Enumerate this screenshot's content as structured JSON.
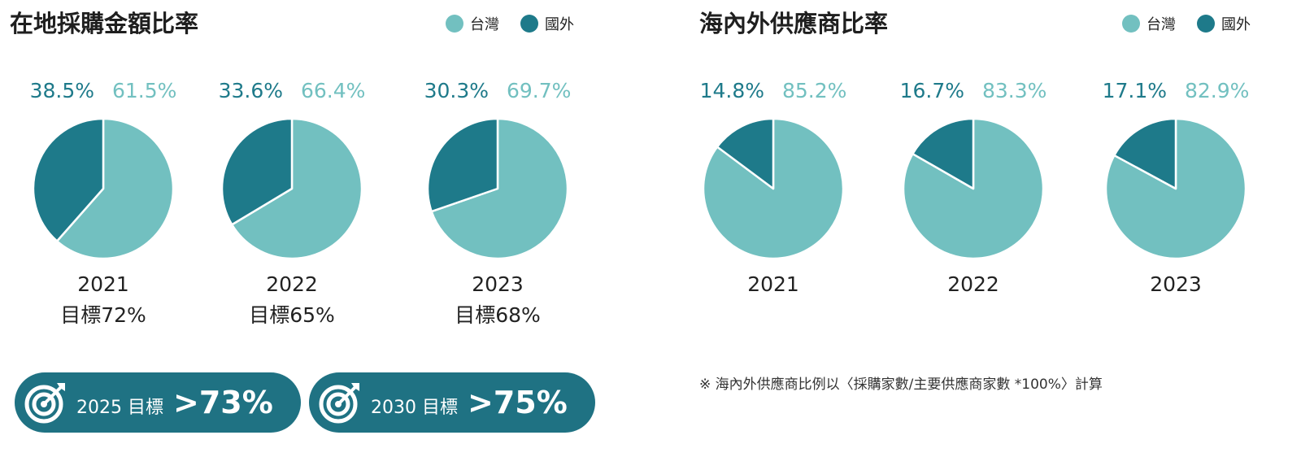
{
  "colors": {
    "taiwan": "#72c0c0",
    "foreign": "#1e7a8a",
    "pill": "#1f7283"
  },
  "legend": {
    "taiwan": "台灣",
    "foreign": "國外"
  },
  "left_panel": {
    "title": "在地採購金額比率",
    "goals": [
      {
        "label": "2025 目標",
        "value": ">73%",
        "icon": "target-arrow-icon"
      },
      {
        "label": "2030 目標",
        "value": ">75%",
        "icon": "target-arrow-icon"
      }
    ]
  },
  "right_panel": {
    "title": "海內外供應商比率",
    "footnote": "※ 海內外供應商比例以〈採購家數/主要供應商家數 *100%〉計算"
  },
  "chart_data": [
    {
      "type": "pie",
      "title": "在地採購金額比率",
      "legend_placement": "top-right",
      "categories": [
        "國外",
        "台灣"
      ],
      "pies": [
        {
          "year": "2021",
          "target": "目標72%",
          "values": [
            38.5,
            61.5
          ],
          "labels": [
            "38.5%",
            "61.5%"
          ]
        },
        {
          "year": "2022",
          "target": "目標65%",
          "values": [
            33.6,
            66.4
          ],
          "labels": [
            "33.6%",
            "66.4%"
          ]
        },
        {
          "year": "2023",
          "target": "目標68%",
          "values": [
            30.3,
            69.7
          ],
          "labels": [
            "30.3%",
            "69.7%"
          ]
        }
      ]
    },
    {
      "type": "pie",
      "title": "海內外供應商比率",
      "legend_placement": "top-right",
      "categories": [
        "國外",
        "台灣"
      ],
      "pies": [
        {
          "year": "2021",
          "values": [
            14.8,
            85.2
          ],
          "labels": [
            "14.8%",
            "85.2%"
          ]
        },
        {
          "year": "2022",
          "values": [
            16.7,
            83.3
          ],
          "labels": [
            "16.7%",
            "83.3%"
          ]
        },
        {
          "year": "2023",
          "values": [
            17.1,
            82.9
          ],
          "labels": [
            "17.1%",
            "82.9%"
          ]
        }
      ]
    }
  ]
}
